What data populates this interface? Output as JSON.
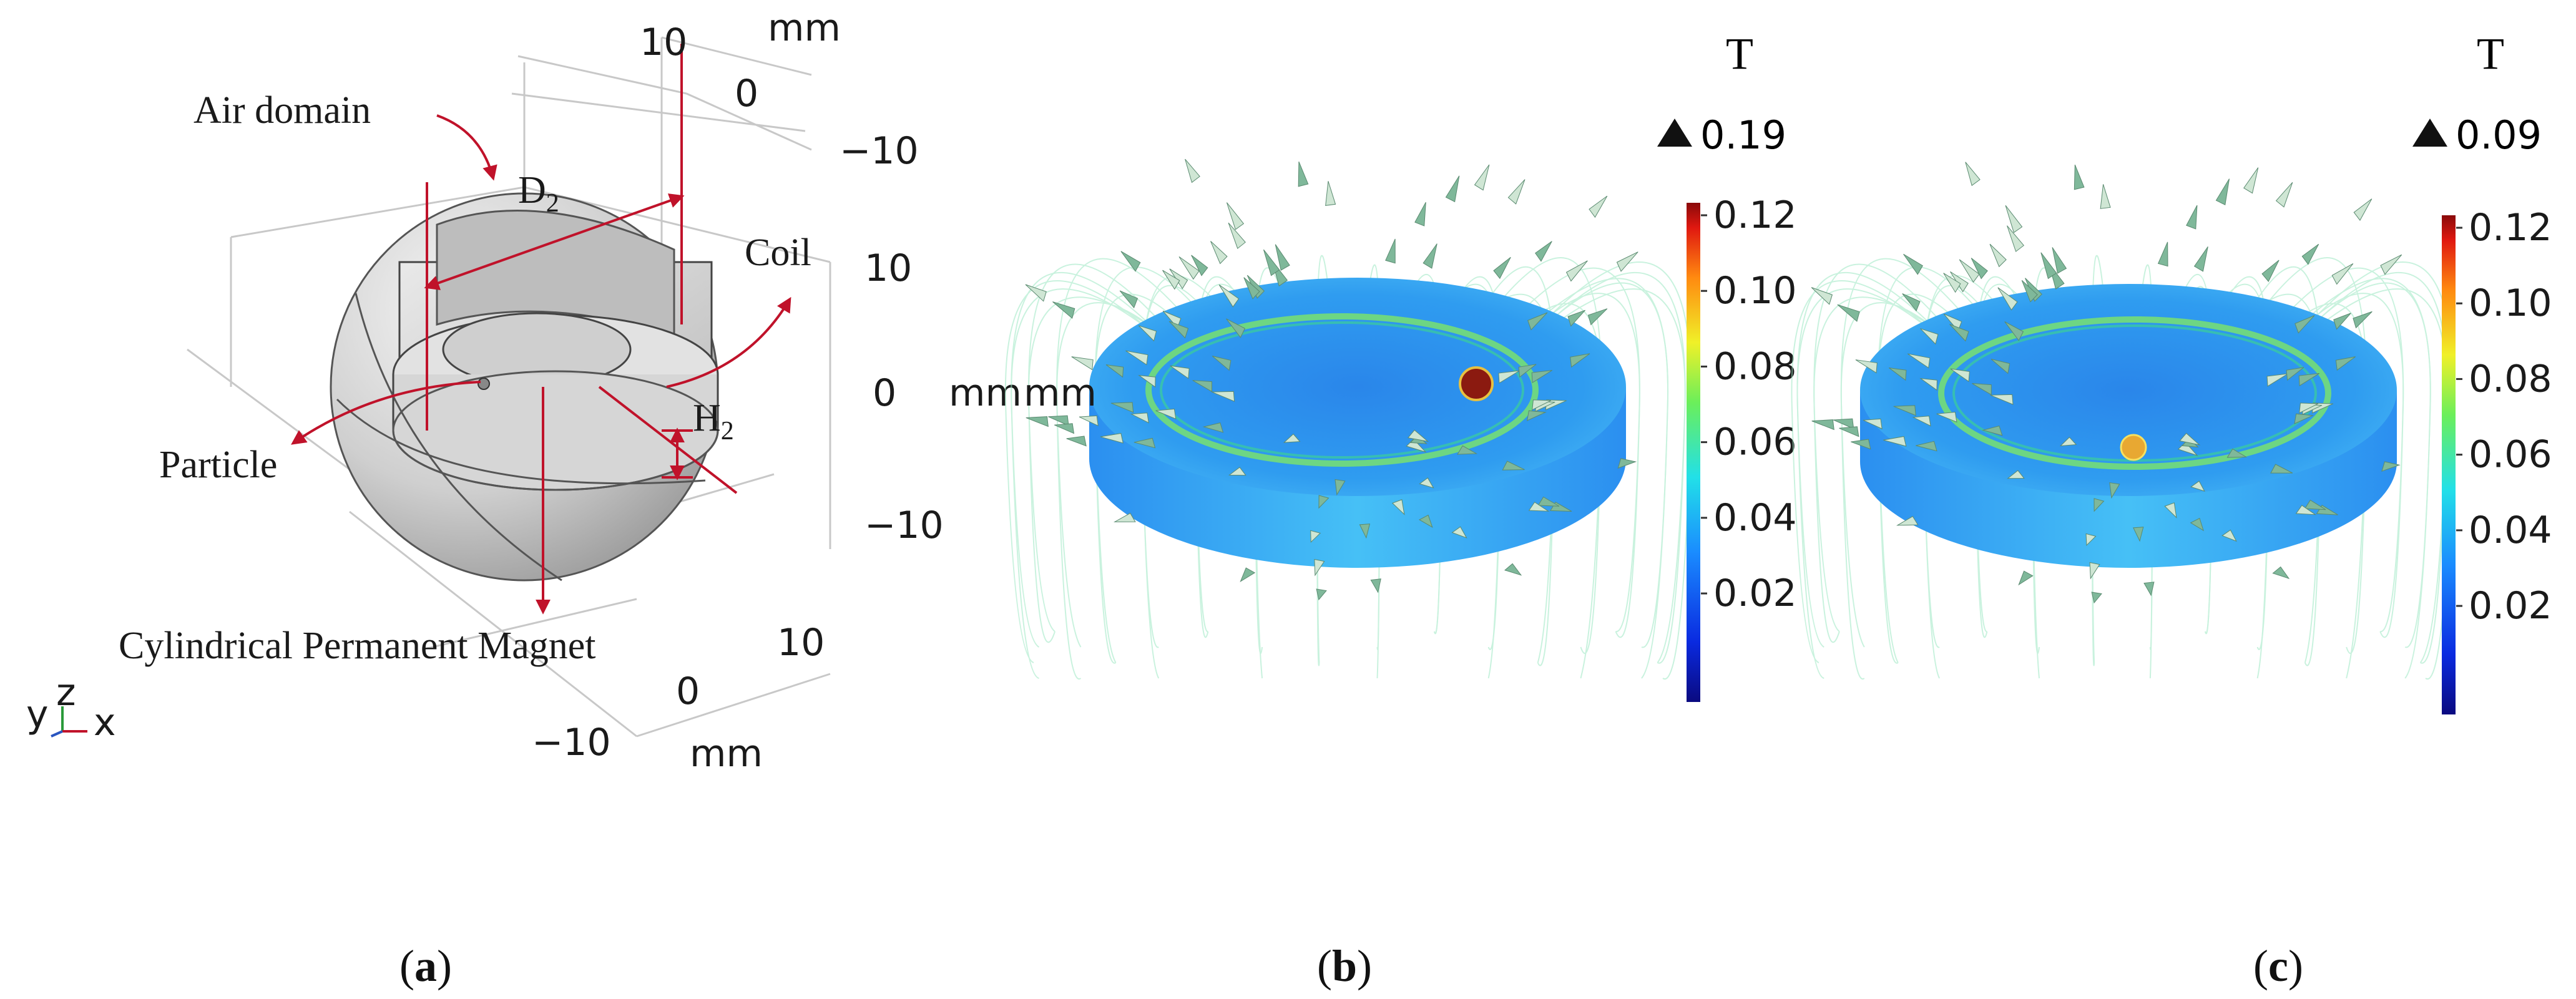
{
  "panel_a": {
    "labels": {
      "air_domain": "Air domain",
      "d2": "D",
      "d2_sub": "2",
      "coil": "Coil",
      "h2": "H",
      "h2_sub": "2",
      "particle": "Particle",
      "magnet": "Cylindrical Permanent Magnet"
    },
    "axis_ticks": {
      "z_top": "10",
      "z_zero": "0",
      "z_unit": "mm",
      "z_neg": "−10",
      "y_pos": "10",
      "y_zero": "0",
      "y_unit": "mm",
      "y_neg": "−10",
      "x_pos": "10",
      "x_zero": "0",
      "x_neg": "−10",
      "x_unit": "mm"
    },
    "triad": {
      "y": "y",
      "z": "z",
      "x": "x"
    },
    "colors": {
      "annotation": "#c0122a",
      "body": "#d8d8d8"
    }
  },
  "panel_b": {
    "unit": "T",
    "max_marker": "0.19",
    "colorbar_ticks": [
      "0.12",
      "0.10",
      "0.08",
      "0.06",
      "0.04",
      "0.02"
    ],
    "particle_color": "#8b1a10",
    "particle_position": "on-ring-right"
  },
  "panel_c": {
    "unit": "T",
    "max_marker": "0.09",
    "colorbar_ticks": [
      "0.12",
      "0.10",
      "0.08",
      "0.06",
      "0.04",
      "0.02"
    ],
    "particle_color": "#e8a832",
    "particle_position": "center"
  },
  "side_label_mm": "mm",
  "captions": {
    "a_open": "(",
    "a_letter": "a",
    "a_close": ")",
    "b_open": "(",
    "b_letter": "b",
    "b_close": ")",
    "c_open": "(",
    "c_letter": "c",
    "c_close": ")"
  }
}
